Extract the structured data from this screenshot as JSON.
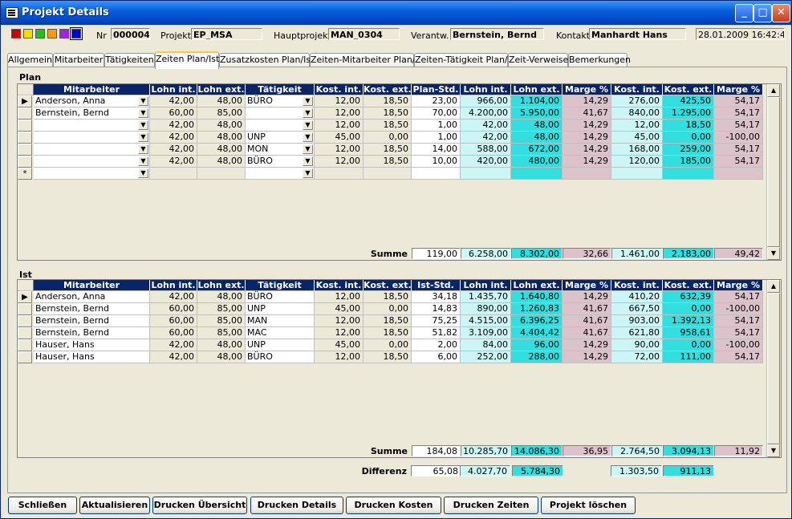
{
  "window": {
    "title": "Projekt Details",
    "minimize": "_",
    "maximize": "□",
    "close": "✕"
  },
  "header": {
    "swatches": [
      "#d40000",
      "#f0e000",
      "#20c020",
      "#ff9a00",
      "#a020f0",
      "#0000d0"
    ],
    "nr_label": "Nr",
    "nr_value": "000004",
    "projekt_label": "Projekt",
    "projekt_value": "EP_MSA",
    "hauptprojekt_label": "Hauptprojekt",
    "hauptprojekt_value": "MAN_0304",
    "verantw_label": "Verantw.",
    "verantw_value": "Bernstein, Bernd",
    "kontakt_label": "Kontakt",
    "kontakt_value": "Manhardt Hans",
    "datetime": "28.01.2009 16:42:45"
  },
  "tabs": [
    "Allgemein",
    "Mitarbeiter",
    "Tätigkeiten",
    "Zeiten Plan/Ist",
    "Zusatzkosten Plan/Ist",
    "Zeiten-Mitarbeiter Plan/Ist",
    "Zeiten-Tätigkeit Plan/Ist",
    "Zeit-Verweise",
    "Bemerkungen"
  ],
  "active_tab": "Zeiten Plan/Ist",
  "plan": {
    "section_label": "Plan",
    "columns": [
      "Mitarbeiter",
      "Lohn int.",
      "Lohn ext.",
      "Tätigkeit",
      "Kost. int.",
      "Kost. ext.",
      "Plan-Std.",
      "Lohn int.",
      "Lohn ext.",
      "Marge %",
      "Kost. int.",
      "Kost. ext.",
      "Marge %"
    ],
    "rows": [
      [
        "Anderson, Anna",
        "42,00",
        "48,00",
        "BÜRO",
        "12,00",
        "18,50",
        "23,00",
        "966,00",
        "1.104,00",
        "14,29",
        "276,00",
        "425,50",
        "54,17"
      ],
      [
        "Bernstein, Bernd",
        "60,00",
        "85,00",
        "",
        "12,00",
        "18,50",
        "70,00",
        "4.200,00",
        "5.950,00",
        "41,67",
        "840,00",
        "1.295,00",
        "54,17"
      ],
      [
        "",
        "42,00",
        "48,00",
        "",
        "12,00",
        "18,50",
        "1,00",
        "42,00",
        "48,00",
        "14,29",
        "12,00",
        "18,50",
        "54,17"
      ],
      [
        "",
        "42,00",
        "48,00",
        "UNP",
        "45,00",
        "0,00",
        "1,00",
        "42,00",
        "48,00",
        "14,29",
        "45,00",
        "0,00",
        "-100,00"
      ],
      [
        "",
        "42,00",
        "48,00",
        "MON",
        "12,00",
        "18,50",
        "14,00",
        "588,00",
        "672,00",
        "14,29",
        "168,00",
        "259,00",
        "54,17"
      ],
      [
        "",
        "42,00",
        "48,00",
        "BÜRO",
        "12,00",
        "18,50",
        "10,00",
        "420,00",
        "480,00",
        "14,29",
        "120,00",
        "185,00",
        "54,17"
      ]
    ],
    "new_row_marker": "*",
    "summe_label": "Summe",
    "summe": [
      "119,00",
      "6.258,00",
      "8.302,00",
      "32,66",
      "1.461,00",
      "2.183,00",
      "49,42"
    ]
  },
  "ist": {
    "section_label": "Ist",
    "columns": [
      "Mitarbeiter",
      "Lohn int.",
      "Lohn ext.",
      "Tätigkeit",
      "Kost. int.",
      "Kost. ext.",
      "Ist-Std.",
      "Lohn int.",
      "Lohn ext.",
      "Marge %",
      "Kost. int.",
      "Kost. ext.",
      "Marge %"
    ],
    "rows": [
      [
        "Anderson, Anna",
        "42,00",
        "48,00",
        "BÜRO",
        "12,00",
        "18,50",
        "34,18",
        "1.435,70",
        "1.640,80",
        "14,29",
        "410,20",
        "632,39",
        "54,17"
      ],
      [
        "Bernstein, Bernd",
        "60,00",
        "85,00",
        "UNP",
        "45,00",
        "0,00",
        "14,83",
        "890,00",
        "1.260,83",
        "41,67",
        "667,50",
        "0,00",
        "-100,00"
      ],
      [
        "Bernstein, Bernd",
        "60,00",
        "85,00",
        "MAN",
        "12,00",
        "18,50",
        "75,25",
        "4.515,00",
        "6.396,25",
        "41,67",
        "903,00",
        "1.392,13",
        "54,17"
      ],
      [
        "Bernstein, Bernd",
        "60,00",
        "85,00",
        "MAC",
        "12,00",
        "18,50",
        "51,82",
        "3.109,00",
        "4.404,42",
        "41,67",
        "621,80",
        "958,61",
        "54,17"
      ],
      [
        "Hauser, Hans",
        "42,00",
        "48,00",
        "UNP",
        "45,00",
        "0,00",
        "2,00",
        "84,00",
        "96,00",
        "14,29",
        "90,00",
        "0,00",
        "-100,00"
      ],
      [
        "Hauser, Hans",
        "42,00",
        "48,00",
        "BÜRO",
        "12,00",
        "18,50",
        "6,00",
        "252,00",
        "288,00",
        "14,29",
        "72,00",
        "111,00",
        "54,17"
      ]
    ],
    "summe_label": "Summe",
    "summe": [
      "184,08",
      "10.285,70",
      "14.086,30",
      "36,95",
      "2.764,50",
      "3.094,13",
      "11,92"
    ]
  },
  "differenz": {
    "label": "Differenz",
    "values": [
      "65,08",
      "4.027,70",
      "5.784,30",
      "1.303,50",
      "911,13"
    ]
  },
  "buttons": [
    "Schließen",
    "Aktualisieren",
    "Drucken Übersicht",
    "Drucken Details",
    "Drucken Kosten",
    "Drucken Zeiten",
    "Projekt löschen"
  ]
}
